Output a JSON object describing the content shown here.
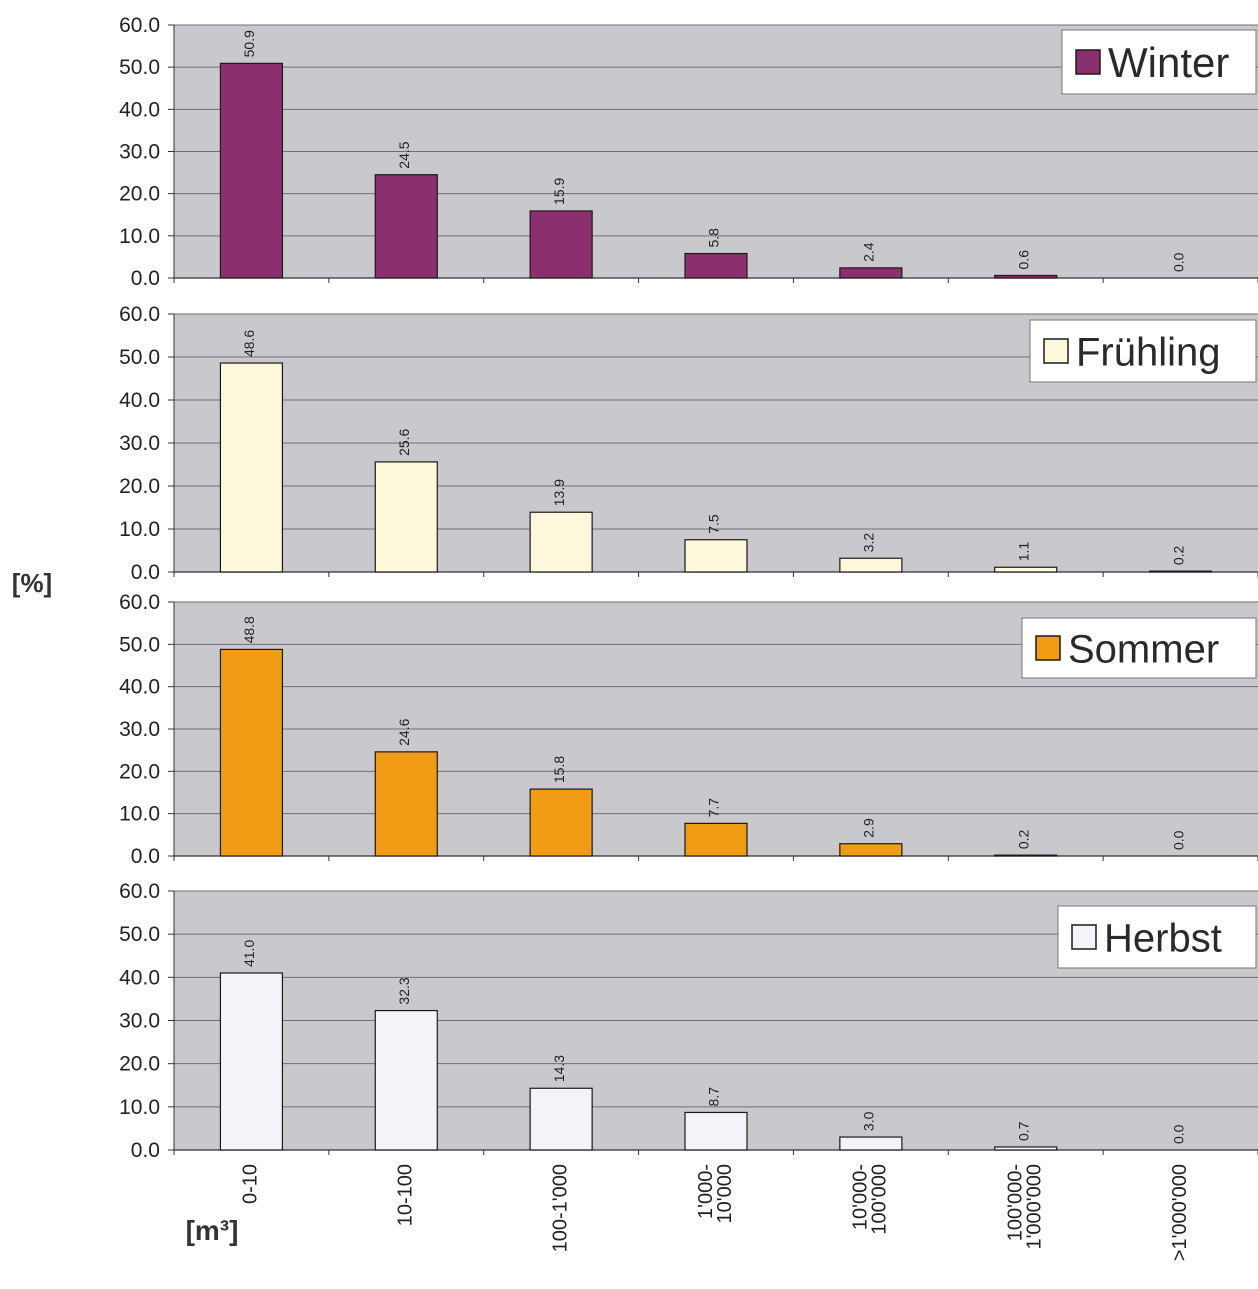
{
  "chart_data": {
    "type": "bar",
    "ylabel": "[%]",
    "xunit": "[m³]",
    "ylim": [
      0,
      60
    ],
    "yticks": [
      "0.0",
      "10.0",
      "20.0",
      "30.0",
      "40.0",
      "50.0",
      "60.0"
    ],
    "grid": true,
    "legend_position": "top-right",
    "categories": [
      [
        "0-10"
      ],
      [
        "10-100"
      ],
      [
        "100-1'000"
      ],
      [
        "1'000-",
        "10'000"
      ],
      [
        "10'000-",
        "100'000"
      ],
      [
        "100'000-",
        "1'000'000"
      ],
      [
        ">1'000'000"
      ]
    ],
    "panels": [
      {
        "name": "Winter",
        "color": "#8b2f6e",
        "values": [
          50.9,
          24.5,
          15.9,
          5.8,
          2.4,
          0.6,
          0.0
        ],
        "labels": [
          "50.9",
          "24.5",
          "15.9",
          "5.8",
          "2.4",
          "0.6",
          "0.0"
        ]
      },
      {
        "name": "Frühling",
        "color": "#fdf8dc",
        "values": [
          48.6,
          25.6,
          13.9,
          7.5,
          3.2,
          1.1,
          0.2
        ],
        "labels": [
          "48.6",
          "25.6",
          "13.9",
          "7.5",
          "3.2",
          "1.1",
          "0.2"
        ]
      },
      {
        "name": "Sommer",
        "color": "#f29c16",
        "values": [
          48.8,
          24.6,
          15.8,
          7.7,
          2.9,
          0.2,
          0.0
        ],
        "labels": [
          "48.8",
          "24.6",
          "15.8",
          "7.7",
          "2.9",
          "0.2",
          "0.0"
        ]
      },
      {
        "name": "Herbst",
        "color": "#f2f4f9",
        "values": [
          41.0,
          32.3,
          14.3,
          8.7,
          3.0,
          0.7,
          0.0
        ],
        "labels": [
          "41.0",
          "32.3",
          "14.3",
          "8.7",
          "3.0",
          "0.7",
          "0.0"
        ]
      }
    ]
  }
}
